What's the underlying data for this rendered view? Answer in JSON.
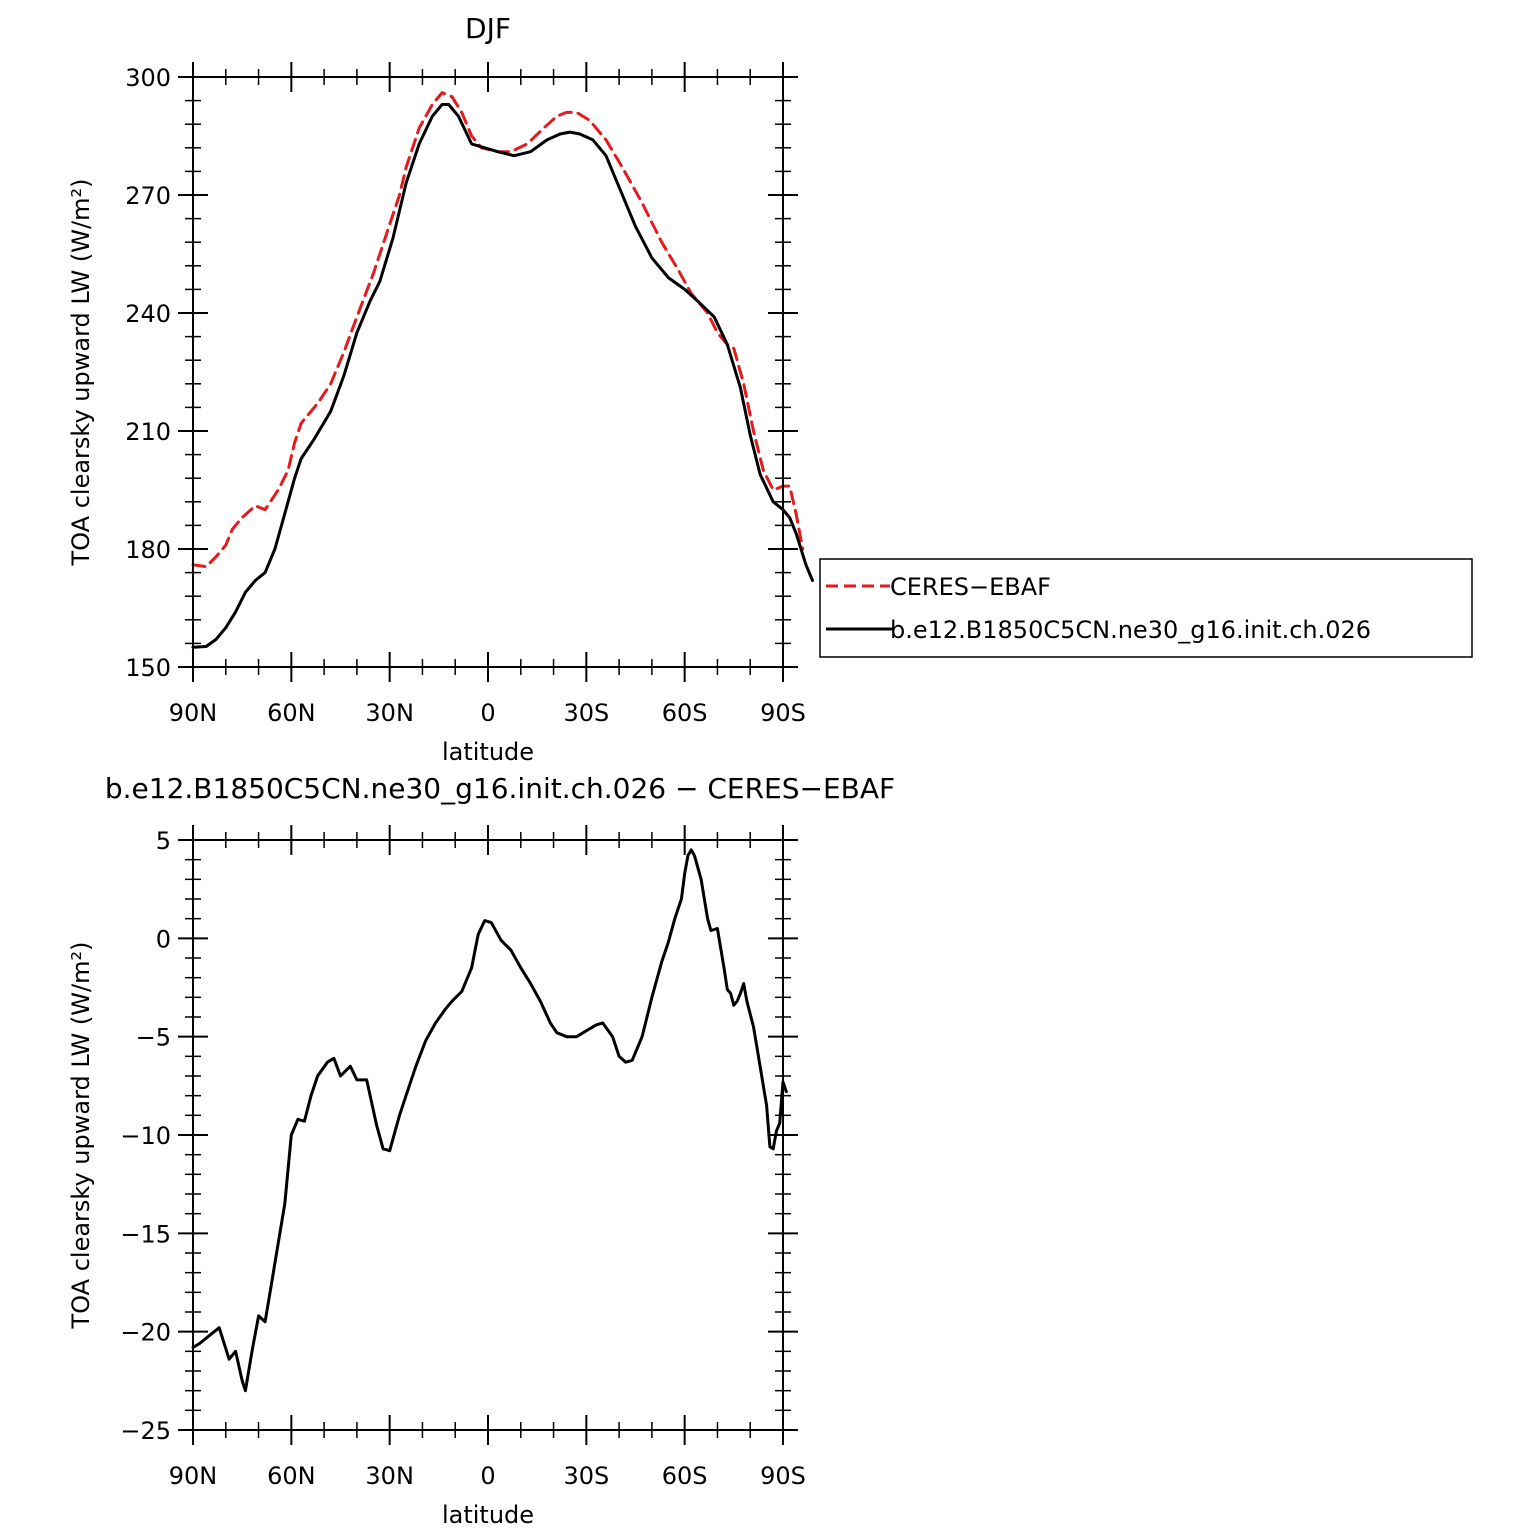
{
  "chart_data": [
    {
      "type": "line",
      "title": "DJF",
      "xlabel": "latitude",
      "ylabel": "TOA clearsky upward LW (W/m²)",
      "ylim": [
        150,
        300
      ],
      "yticks": [
        150,
        180,
        210,
        240,
        270,
        300
      ],
      "xlim": [
        90,
        -90
      ],
      "xticks": [
        90,
        60,
        30,
        0,
        -30,
        -60,
        -90
      ],
      "xtick_labels": [
        "90N",
        "60N",
        "30N",
        "0",
        "30S",
        "60S",
        "90S"
      ],
      "legend": "right",
      "series": [
        {
          "name": "CERES−EBAF",
          "color": "#e41a1c",
          "style": "dashed",
          "points": [
            [
              90,
              176
            ],
            [
              86,
              175.5
            ],
            [
              83,
              178
            ],
            [
              80,
              181
            ],
            [
              78,
              185
            ],
            [
              75,
              188
            ],
            [
              71,
              191
            ],
            [
              68,
              190
            ],
            [
              64,
              195
            ],
            [
              61,
              200
            ],
            [
              59,
              207
            ],
            [
              57,
              212
            ],
            [
              52,
              217
            ],
            [
              48,
              222
            ],
            [
              44,
              230
            ],
            [
              40,
              239
            ],
            [
              35,
              250
            ],
            [
              31,
              260
            ],
            [
              27,
              270
            ],
            [
              25,
              277
            ],
            [
              21,
              287
            ],
            [
              17,
              293
            ],
            [
              14,
              296
            ],
            [
              11,
              295
            ],
            [
              8,
              291
            ],
            [
              5,
              285
            ],
            [
              2,
              282
            ],
            [
              -3,
              281
            ],
            [
              -7,
              281
            ],
            [
              -12,
              283
            ],
            [
              -17,
              287
            ],
            [
              -21,
              290
            ],
            [
              -24,
              291
            ],
            [
              -27,
              291
            ],
            [
              -31,
              289
            ],
            [
              -36,
              284
            ],
            [
              -41,
              277
            ],
            [
              -47,
              268
            ],
            [
              -53,
              258
            ],
            [
              -58,
              251
            ],
            [
              -62,
              245
            ],
            [
              -67,
              240
            ],
            [
              -70,
              235
            ],
            [
              -73,
              232
            ],
            [
              -75,
              231
            ],
            [
              -78,
              222
            ],
            [
              -81,
              210
            ],
            [
              -84,
              200
            ],
            [
              -87,
              195
            ],
            [
              -90,
              196
            ],
            [
              -92,
              196
            ],
            [
              -94,
              189
            ],
            [
              -96,
              180
            ]
          ]
        },
        {
          "name": "b.e12.B1850C5CN.ne30_g16.init.ch.026",
          "color": "#000000",
          "style": "solid",
          "points": [
            [
              90,
              155
            ],
            [
              86,
              155.2
            ],
            [
              83,
              157
            ],
            [
              80,
              160
            ],
            [
              77,
              164
            ],
            [
              74,
              169
            ],
            [
              71,
              172
            ],
            [
              68,
              174
            ],
            [
              65,
              180
            ],
            [
              62,
              189
            ],
            [
              59,
              198
            ],
            [
              57,
              203
            ],
            [
              53,
              208
            ],
            [
              48,
              215
            ],
            [
              44,
              224
            ],
            [
              40,
              235
            ],
            [
              36,
              243
            ],
            [
              33,
              248
            ],
            [
              29,
              259
            ],
            [
              25,
              273
            ],
            [
              21,
              283
            ],
            [
              17,
              290
            ],
            [
              14,
              293
            ],
            [
              12,
              293
            ],
            [
              9,
              290
            ],
            [
              5,
              283
            ],
            [
              1,
              282
            ],
            [
              -3,
              281
            ],
            [
              -8,
              280
            ],
            [
              -13,
              281
            ],
            [
              -18,
              284
            ],
            [
              -22,
              285.5
            ],
            [
              -25,
              286
            ],
            [
              -28,
              285.5
            ],
            [
              -32,
              284
            ],
            [
              -36,
              280
            ],
            [
              -40,
              272
            ],
            [
              -45,
              262
            ],
            [
              -50,
              254
            ],
            [
              -55,
              249
            ],
            [
              -60,
              246
            ],
            [
              -64,
              243
            ],
            [
              -69,
              239
            ],
            [
              -73,
              232
            ],
            [
              -77,
              221
            ],
            [
              -80,
              209
            ],
            [
              -83,
              199
            ],
            [
              -87,
              192
            ],
            [
              -90,
              190
            ],
            [
              -92,
              188
            ],
            [
              -94,
              184
            ],
            [
              -97,
              176
            ],
            [
              -99,
              172
            ]
          ]
        }
      ]
    },
    {
      "type": "line",
      "title": "b.e12.B1850C5CN.ne30_g16.init.ch.026 − CERES−EBAF",
      "xlabel": "latitude",
      "ylabel": "TOA clearsky upward LW (W/m²)",
      "ylim": [
        -25,
        5
      ],
      "yticks": [
        -25,
        -20,
        -15,
        -10,
        -5,
        0,
        5
      ],
      "xlim": [
        90,
        -90
      ],
      "xticks": [
        90,
        60,
        30,
        0,
        -30,
        -60,
        -90
      ],
      "xtick_labels": [
        "90N",
        "60N",
        "30N",
        "0",
        "30S",
        "60S",
        "90S"
      ],
      "series": [
        {
          "name": "",
          "color": "#000000",
          "style": "solid",
          "points": [
            [
              90,
              -20.8
            ],
            [
              88,
              -20.6
            ],
            [
              85,
              -20.2
            ],
            [
              82,
              -19.8
            ],
            [
              79,
              -21.4
            ],
            [
              77,
              -21
            ],
            [
              75,
              -22.5
            ],
            [
              74,
              -23
            ],
            [
              72,
              -21
            ],
            [
              70,
              -19.2
            ],
            [
              68,
              -19.5
            ],
            [
              66,
              -17.5
            ],
            [
              64,
              -15.5
            ],
            [
              62,
              -13.5
            ],
            [
              60,
              -10
            ],
            [
              58,
              -9.2
            ],
            [
              56,
              -9.3
            ],
            [
              54,
              -8
            ],
            [
              52,
              -7
            ],
            [
              49,
              -6.3
            ],
            [
              47,
              -6.1
            ],
            [
              45,
              -7
            ],
            [
              42,
              -6.5
            ],
            [
              40,
              -7.2
            ],
            [
              37,
              -7.2
            ],
            [
              34,
              -9.5
            ],
            [
              32,
              -10.7
            ],
            [
              30,
              -10.8
            ],
            [
              27,
              -9
            ],
            [
              24,
              -7.5
            ],
            [
              22,
              -6.5
            ],
            [
              19,
              -5.2
            ],
            [
              16,
              -4.3
            ],
            [
              13,
              -3.6
            ],
            [
              11,
              -3.2
            ],
            [
              8,
              -2.7
            ],
            [
              5,
              -1.5
            ],
            [
              3,
              0.2
            ],
            [
              1,
              0.9
            ],
            [
              -1,
              0.8
            ],
            [
              -4,
              -0.1
            ],
            [
              -7,
              -0.6
            ],
            [
              -10,
              -1.5
            ],
            [
              -13,
              -2.3
            ],
            [
              -16,
              -3.2
            ],
            [
              -19,
              -4.3
            ],
            [
              -21,
              -4.8
            ],
            [
              -24,
              -5
            ],
            [
              -27,
              -5
            ],
            [
              -30,
              -4.7
            ],
            [
              -33,
              -4.4
            ],
            [
              -35,
              -4.3
            ],
            [
              -38,
              -5
            ],
            [
              -40,
              -6
            ],
            [
              -42,
              -6.3
            ],
            [
              -44,
              -6.2
            ],
            [
              -47,
              -5
            ],
            [
              -50,
              -3
            ],
            [
              -53,
              -1.2
            ],
            [
              -55,
              -0.2
            ],
            [
              -57,
              1
            ],
            [
              -59,
              2
            ],
            [
              -60,
              3.3
            ],
            [
              -61,
              4.2
            ],
            [
              -62,
              4.5
            ],
            [
              -63,
              4.2
            ],
            [
              -65,
              3
            ],
            [
              -67,
              1
            ],
            [
              -68,
              0.4
            ],
            [
              -70,
              0.5
            ],
            [
              -72,
              -1.5
            ],
            [
              -73,
              -2.6
            ],
            [
              -74,
              -2.8
            ],
            [
              -75,
              -3.4
            ],
            [
              -76,
              -3.2
            ],
            [
              -77,
              -2.8
            ],
            [
              -78,
              -2.3
            ],
            [
              -79,
              -3.2
            ],
            [
              -81,
              -4.5
            ],
            [
              -83,
              -6.5
            ],
            [
              -85,
              -8.5
            ],
            [
              -86,
              -10.6
            ],
            [
              -87,
              -10.7
            ],
            [
              -88,
              -9.8
            ],
            [
              -89,
              -9.4
            ],
            [
              -90,
              -7.3
            ],
            [
              -91,
              -7.8
            ]
          ]
        }
      ]
    }
  ]
}
